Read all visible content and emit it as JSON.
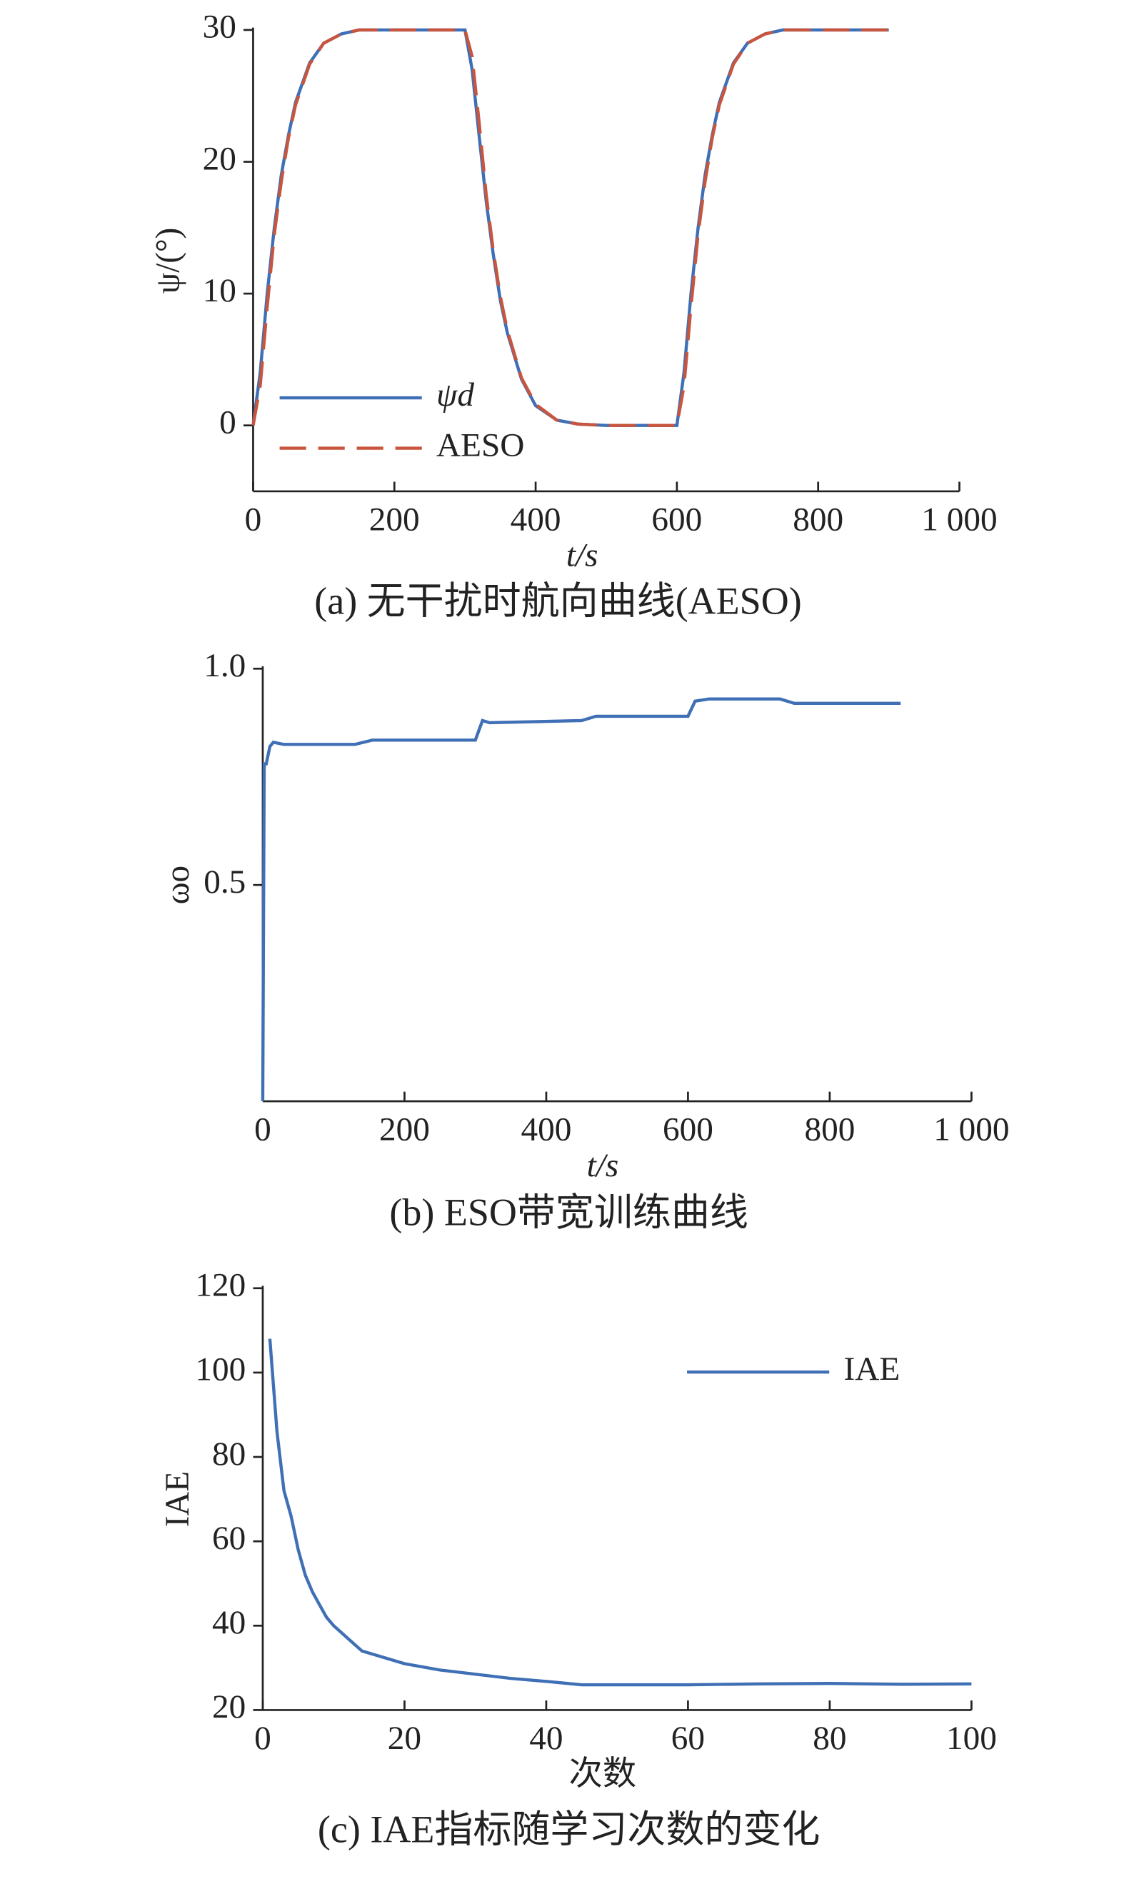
{
  "chart_data": [
    {
      "type": "line",
      "caption": "(a) 无干扰时航向曲线(AESO)",
      "xlabel": "t/s",
      "ylabel": "ψ/(°)",
      "x": [
        0,
        10,
        20,
        30,
        40,
        50,
        60,
        80,
        100,
        125,
        150,
        200,
        300,
        310,
        320,
        330,
        340,
        350,
        360,
        380,
        400,
        430,
        460,
        500,
        600,
        610,
        620,
        630,
        640,
        650,
        660,
        680,
        700,
        725,
        750,
        900
      ],
      "series": [
        {
          "name": "ψd",
          "color": "#3f6fb5",
          "dash": false,
          "values": [
            0,
            4,
            10,
            15,
            19,
            22,
            24.5,
            27.5,
            29,
            29.7,
            30,
            30,
            30,
            27,
            22,
            17,
            13,
            9.5,
            7,
            3.5,
            1.5,
            0.4,
            0.1,
            0,
            0,
            4,
            10,
            15,
            19,
            22,
            24.5,
            27.5,
            29,
            29.7,
            30,
            30
          ]
        },
        {
          "name": "AESO",
          "color": "#c8553d",
          "dash": true,
          "values": [
            0,
            3,
            9,
            14.5,
            18.5,
            21.8,
            24.3,
            27.4,
            29,
            29.7,
            30,
            30,
            30,
            28,
            23,
            17.5,
            13.3,
            9.8,
            7.2,
            3.6,
            1.6,
            0.4,
            0.1,
            0,
            0,
            3,
            9,
            14.5,
            18.5,
            21.8,
            24.3,
            27.4,
            29,
            29.7,
            30,
            30
          ]
        }
      ],
      "xlim": [
        0,
        1000
      ],
      "ylim": [
        -5,
        30
      ],
      "xticks": [
        0,
        200,
        400,
        600,
        800,
        {
          "value": 1000,
          "label": "1 000"
        }
      ],
      "yticks": [
        0,
        10,
        20,
        30
      ],
      "legend": "lower left"
    },
    {
      "type": "line",
      "caption": "(b) ESO带宽训练曲线",
      "xlabel": "t/s",
      "ylabel": "ωo",
      "x": [
        0,
        2,
        5,
        10,
        15,
        30,
        130,
        155,
        300,
        310,
        320,
        450,
        470,
        600,
        610,
        630,
        730,
        750,
        900
      ],
      "series": [
        {
          "color": "#3f6fb5",
          "dash": false,
          "values": [
            0,
            0.78,
            0.78,
            0.82,
            0.83,
            0.825,
            0.825,
            0.835,
            0.835,
            0.88,
            0.875,
            0.88,
            0.89,
            0.89,
            0.925,
            0.93,
            0.93,
            0.92,
            0.92
          ]
        }
      ],
      "xlim": [
        0,
        1000
      ],
      "ylim": [
        0,
        1
      ],
      "xticks": [
        0,
        200,
        400,
        600,
        800,
        {
          "value": 1000,
          "label": "1 000"
        }
      ],
      "yticks": [
        0.5,
        {
          "value": 1,
          "label": "1.0"
        }
      ]
    },
    {
      "type": "line",
      "caption": "(c) IAE指标随学习次数的变化",
      "xlabel": "次数",
      "ylabel": "IAE",
      "x": [
        1,
        2,
        3,
        4,
        5,
        6,
        7,
        8,
        9,
        10,
        12,
        14,
        15,
        20,
        25,
        30,
        35,
        40,
        45,
        50,
        60,
        70,
        80,
        90,
        100
      ],
      "series": [
        {
          "name": "IAE",
          "color": "#3f6fb5",
          "dash": false,
          "values": [
            108,
            86,
            72,
            66,
            58,
            52,
            48,
            45,
            42,
            40,
            37,
            34,
            33.5,
            31,
            29.5,
            28.5,
            27.5,
            26.8,
            26,
            26,
            26,
            26.2,
            26.3,
            26.1,
            26.2
          ]
        }
      ],
      "xlim": [
        0,
        100
      ],
      "ylim": [
        20,
        120
      ],
      "xticks": [
        0,
        20,
        40,
        60,
        80,
        100
      ],
      "yticks": [
        20,
        40,
        60,
        80,
        100,
        120
      ],
      "legend": "upper right"
    }
  ]
}
